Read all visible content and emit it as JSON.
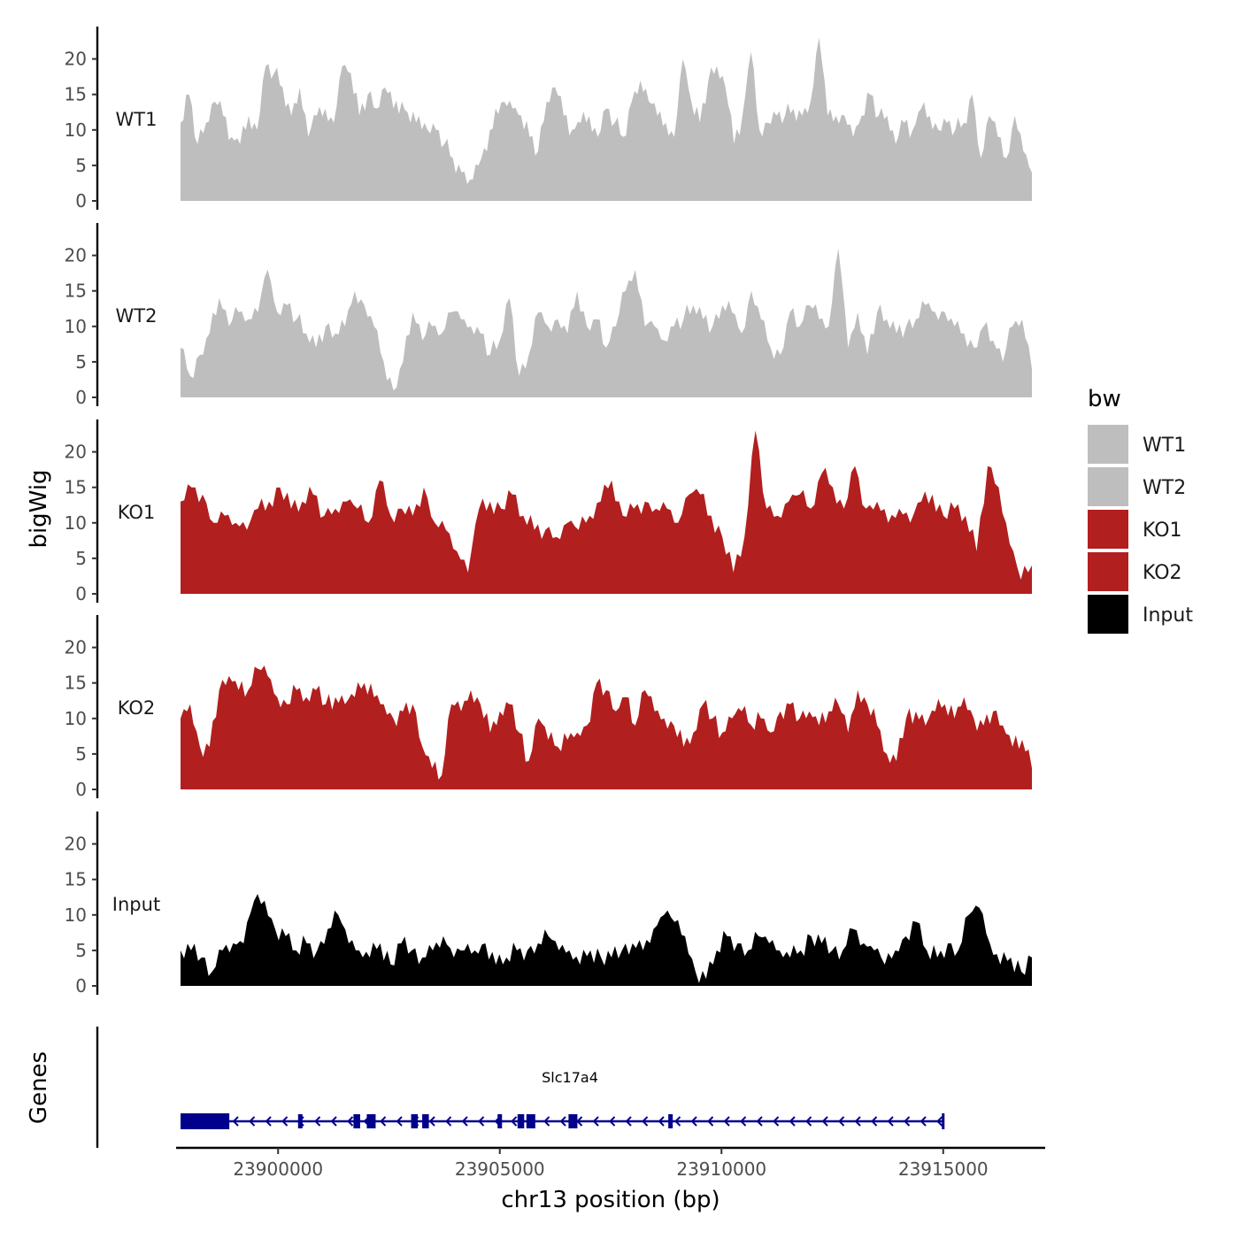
{
  "chart_data": {
    "type": "area",
    "ylabel": "bigWig",
    "gene_panel_label": "Genes",
    "xlabel": "chr13 position (bp)",
    "xlim": [
      23897700,
      23917300
    ],
    "data_range": [
      23897800,
      23917000
    ],
    "ylim": [
      0,
      24
    ],
    "y_ticks": [
      0,
      5,
      10,
      15,
      20
    ],
    "x_ticks": [
      23900000,
      23905000,
      23910000,
      23915000
    ],
    "x_tick_labels": [
      "23900000",
      "23905000",
      "23910000",
      "23915000"
    ],
    "legend": {
      "title": "bw",
      "position": "right",
      "entries": [
        {
          "name": "WT1",
          "color": "#bebebe"
        },
        {
          "name": "WT2",
          "color": "#bebebe"
        },
        {
          "name": "KO1",
          "color": "#b21f1f"
        },
        {
          "name": "KO2",
          "color": "#b21f1f"
        },
        {
          "name": "Input",
          "color": "#000000"
        }
      ]
    },
    "series": [
      {
        "name": "WT1",
        "color": "#bebebe",
        "values": [
          11,
          15,
          8,
          11,
          14,
          12,
          9,
          8,
          12,
          10,
          19,
          18,
          16,
          12,
          16,
          9,
          12,
          13,
          11,
          19,
          18,
          12,
          15,
          13,
          16,
          13,
          14,
          11,
          12,
          10,
          10,
          8,
          6,
          4,
          3,
          5,
          7,
          13,
          14,
          13,
          12,
          9,
          7,
          14,
          16,
          12,
          10,
          11,
          12,
          9,
          13,
          11,
          9,
          14,
          17,
          14,
          12,
          11,
          9,
          20,
          14,
          11,
          17,
          19,
          16,
          8,
          12,
          21,
          10,
          11,
          12,
          12,
          13,
          12,
          14,
          23,
          12,
          12,
          12,
          9,
          12,
          15,
          12,
          12,
          8,
          11,
          10,
          13,
          12,
          10,
          11,
          10,
          11,
          15,
          6,
          12,
          9,
          6,
          12,
          7,
          4
        ],
        "smooth": [
          0.3,
          -0.6,
          0.8,
          -0.4,
          0.5,
          -0.8,
          0.2,
          0.7,
          -0.3,
          0.6,
          -0.5,
          0.4,
          -0.7,
          0.1,
          0.9,
          -0.2,
          0.5,
          -0.9,
          0.3,
          -0.1
        ]
      },
      {
        "name": "WT2",
        "color": "#bebebe",
        "values": [
          7,
          3,
          6,
          9,
          14,
          10,
          12,
          11,
          12,
          18,
          12,
          13,
          11,
          9,
          7,
          10,
          9,
          10,
          15,
          13,
          10,
          5,
          1,
          5,
          12,
          8,
          10,
          9,
          12,
          11,
          10,
          9,
          6,
          8,
          14,
          3,
          6,
          12,
          10,
          11,
          9,
          15,
          10,
          11,
          7,
          10,
          15,
          18,
          10,
          10,
          8,
          10,
          11,
          13,
          11,
          10,
          13,
          12,
          9,
          15,
          11,
          7,
          6,
          12,
          10,
          13,
          11,
          10,
          21,
          7,
          12,
          6,
          12,
          11,
          9,
          10,
          11,
          13,
          12,
          12,
          10,
          9,
          7,
          10,
          8,
          5,
          10,
          11,
          4
        ],
        "smooth": [
          -0.4,
          0.7,
          -0.2,
          0.6,
          -0.8,
          0.3,
          0.5,
          -0.6,
          0.2,
          -0.3,
          0.8,
          -0.5,
          0.4,
          -0.1,
          0.6,
          -0.7,
          0.1,
          0.9,
          -0.4,
          0.3
        ]
      },
      {
        "name": "KO1",
        "color": "#b21f1f",
        "values": [
          13,
          15,
          14,
          10,
          11,
          10,
          9,
          12,
          13,
          15,
          12,
          13,
          14,
          11,
          12,
          13,
          12,
          10,
          16,
          11,
          12,
          11,
          15,
          10,
          9,
          6,
          3,
          12,
          13,
          12,
          14,
          11,
          9,
          9,
          8,
          10,
          9,
          11,
          13,
          16,
          11,
          12,
          13,
          12,
          12,
          10,
          14,
          14,
          11,
          8,
          3,
          8,
          23,
          12,
          11,
          13,
          14,
          12,
          17,
          15,
          12,
          18,
          12,
          13,
          10,
          12,
          10,
          13,
          14,
          11,
          12,
          11,
          6,
          18,
          15,
          7,
          2,
          4
        ],
        "smooth": [
          0.5,
          -0.3,
          0.7,
          -0.6,
          0.2,
          -0.9,
          0.4,
          0.1,
          -0.5,
          0.8,
          -0.2,
          0.6,
          -0.7,
          0.3,
          -0.4,
          0.9,
          -0.1,
          0.5,
          -0.8,
          0.2
        ]
      },
      {
        "name": "KO2",
        "color": "#b21f1f",
        "values": [
          10,
          12,
          6,
          6,
          14,
          16,
          14,
          14,
          17,
          16,
          13,
          12,
          14,
          13,
          14,
          12,
          13,
          12,
          13,
          15,
          13,
          12,
          10,
          11,
          12,
          6,
          3,
          2,
          12,
          11,
          14,
          12,
          8,
          11,
          12,
          8,
          4,
          10,
          7,
          6,
          7,
          8,
          9,
          15,
          14,
          11,
          13,
          9,
          14,
          11,
          10,
          9,
          6,
          8,
          12,
          10,
          8,
          10,
          11,
          9,
          10,
          8,
          11,
          12,
          10,
          11,
          9,
          11,
          12,
          8,
          14,
          12,
          9,
          5,
          4,
          10,
          11,
          9,
          11,
          12,
          10,
          13,
          10,
          9,
          11,
          9,
          6,
          7,
          3
        ],
        "smooth": [
          -0.6,
          0.4,
          -0.2,
          0.8,
          -0.5,
          0.1,
          0.7,
          -0.9,
          0.3,
          -0.3,
          0.6,
          -0.7,
          0.2,
          0.5,
          -0.4,
          0.9,
          -0.1,
          0.4,
          -0.6,
          0.8
        ]
      },
      {
        "name": "Input",
        "color": "#000000",
        "values": [
          5,
          5,
          4,
          2,
          5,
          6,
          6,
          12,
          12,
          8,
          7,
          5,
          6,
          5,
          8,
          10,
          6,
          5,
          4,
          6,
          3,
          6,
          5,
          4,
          5,
          7,
          4,
          5,
          5,
          6,
          3,
          4,
          5,
          5,
          6,
          7,
          5,
          5,
          3,
          5,
          4,
          4,
          5,
          6,
          5,
          8,
          10,
          9,
          7,
          2,
          1,
          5,
          7,
          6,
          5,
          7,
          6,
          5,
          4,
          5,
          7,
          6,
          5,
          5,
          8,
          6,
          5,
          3,
          5,
          7,
          9,
          5,
          4,
          6,
          5,
          10,
          11,
          6,
          3,
          4,
          2,
          4
        ],
        "smooth": [
          0.2,
          -0.7,
          0.6,
          -0.3,
          0.8,
          -0.5,
          0.1,
          0.4,
          -0.8,
          0.5,
          -0.2,
          0.7,
          -0.4,
          0.3,
          -0.6,
          0.9,
          -0.1,
          0.2,
          -0.9,
          0.6
        ]
      }
    ],
    "gene": {
      "name": "Slc17a4",
      "strand": "-",
      "color": "#00008b",
      "start": 23897800,
      "end": 23915000,
      "exons": [
        [
          23897800,
          23898900
        ],
        [
          23900450,
          23900550
        ],
        [
          23901700,
          23901850
        ],
        [
          23902000,
          23902200
        ],
        [
          23903000,
          23903150
        ],
        [
          23903250,
          23903400
        ],
        [
          23904950,
          23905050
        ],
        [
          23905400,
          23905550
        ],
        [
          23905600,
          23905800
        ],
        [
          23906550,
          23906750
        ],
        [
          23908800,
          23908900
        ]
      ]
    }
  }
}
